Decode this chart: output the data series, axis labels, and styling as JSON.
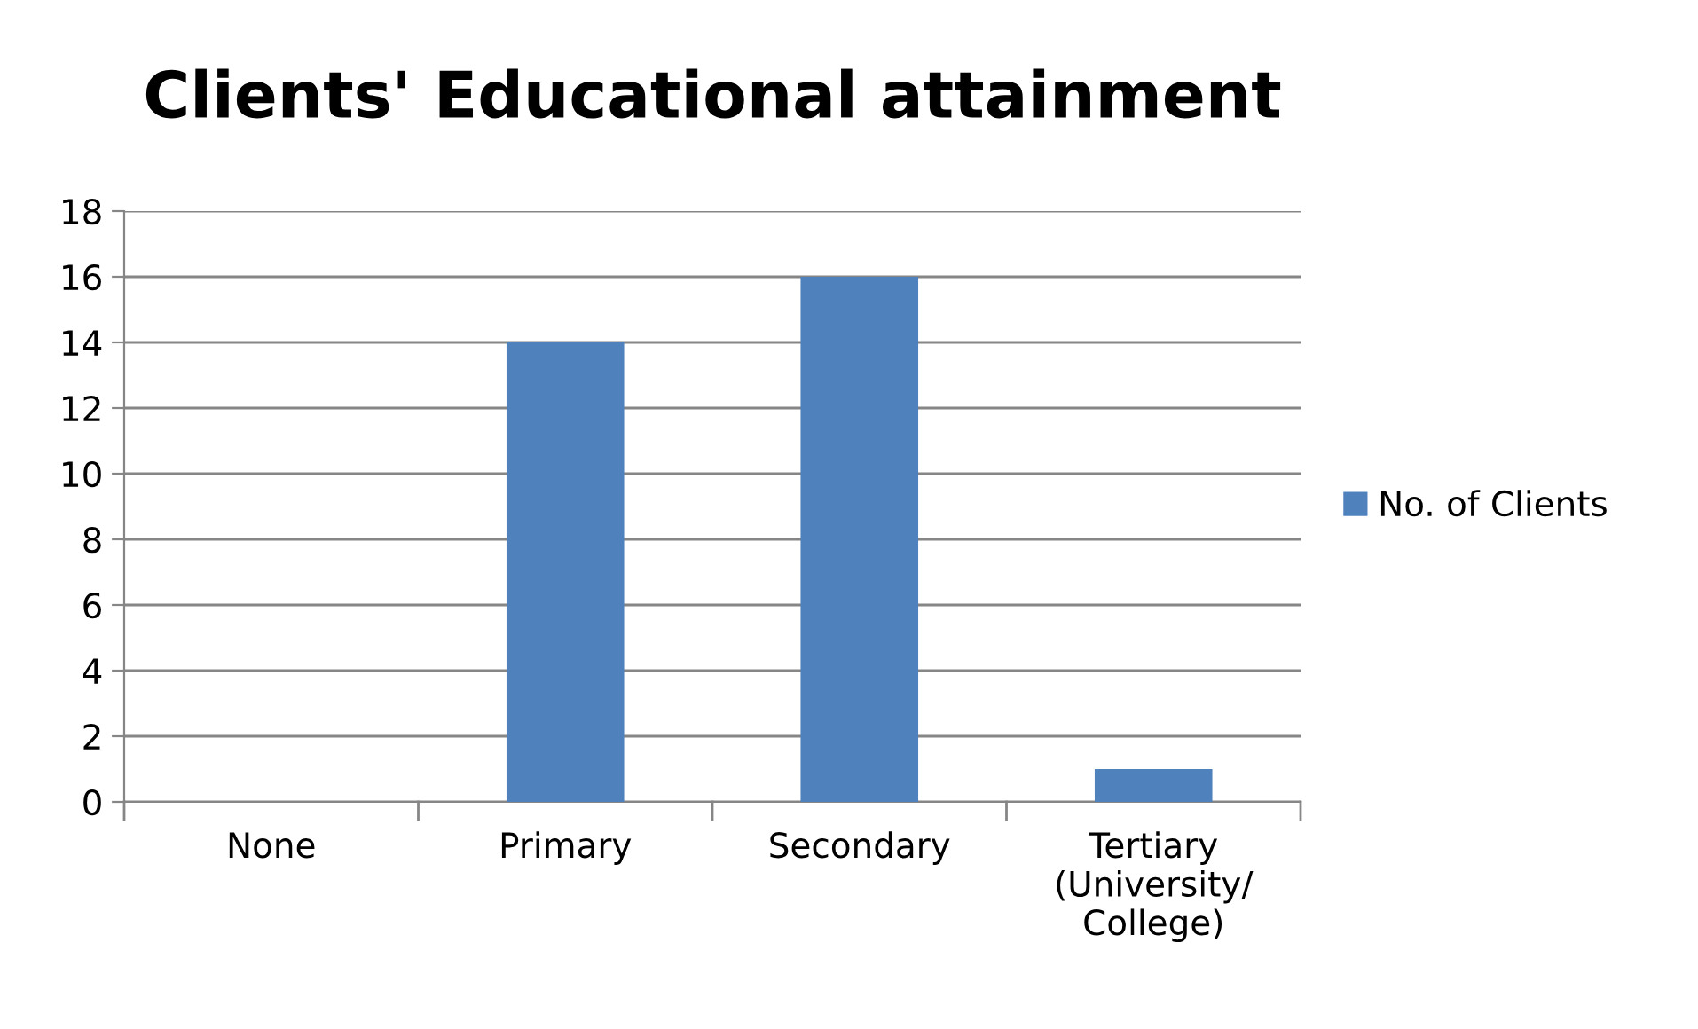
{
  "chart_data": {
    "type": "bar",
    "title": "Clients' Educational attainment",
    "categories": [
      "None",
      "Primary",
      "Secondary",
      "Tertiary\n(University/\nCollege)"
    ],
    "series": [
      {
        "name": "No. of Clients",
        "color": "#4f81bd",
        "values": [
          0,
          14,
          16,
          1
        ]
      }
    ],
    "ylim": [
      0,
      18
    ],
    "yticks": [
      0,
      2,
      4,
      6,
      8,
      10,
      12,
      14,
      16,
      18
    ],
    "grid": "y",
    "legend": "right"
  }
}
